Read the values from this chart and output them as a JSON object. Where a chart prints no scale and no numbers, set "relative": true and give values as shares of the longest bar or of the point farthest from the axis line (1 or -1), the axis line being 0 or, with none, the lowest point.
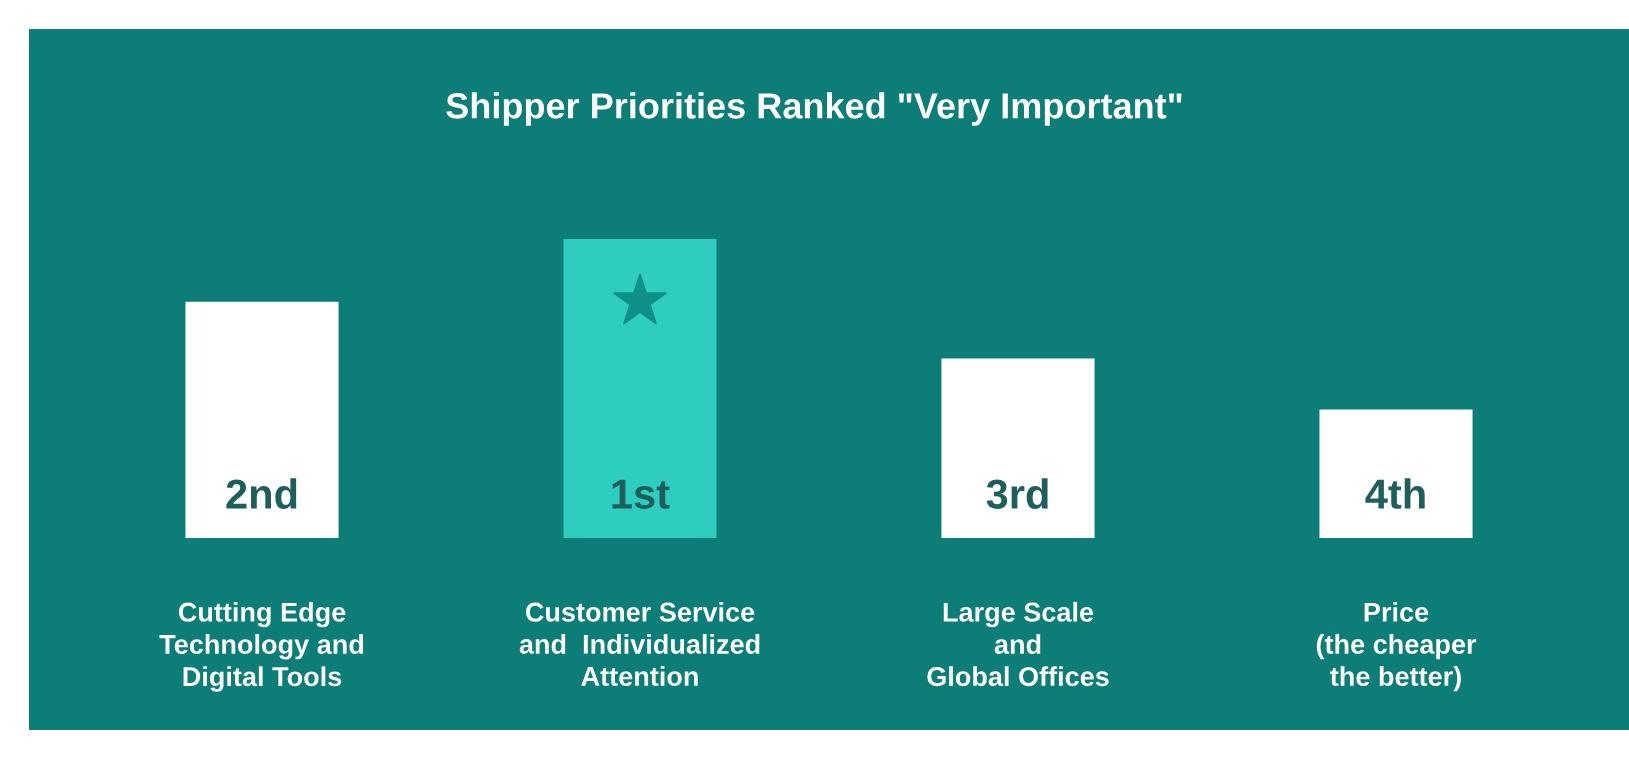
{
  "chart_data": {
    "type": "bar",
    "title": "Shipper Priorities Ranked \"Very Important\"",
    "relative": true,
    "categories": [
      "Cutting Edge\nTechnology and\nDigital Tools",
      "Customer Service\nand  Individualized\nAttention",
      "Large Scale\nand\nGlobal Offices",
      "Price\n(the cheaper\nthe better)"
    ],
    "values": [
      0.79,
      1,
      0.6,
      0.43
    ],
    "colors": [
      "#ffffff",
      "#2ecdc0",
      "#ffffff",
      "#ffffff"
    ],
    "annotations": [
      "2nd",
      "1st",
      "3rd",
      "4th"
    ],
    "grid": false,
    "legend": false
  }
}
